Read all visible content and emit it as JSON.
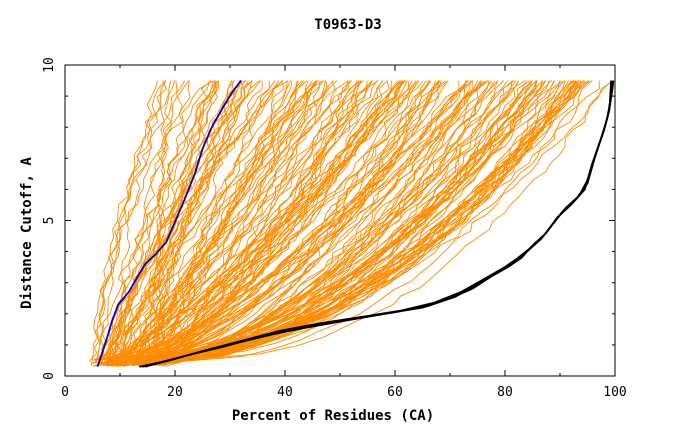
{
  "chart_data": {
    "type": "line",
    "title": "T0963-D3",
    "xlabel": "Percent of Residues (CA)",
    "ylabel": "Distance Cutoff, A",
    "xlim": [
      0,
      100
    ],
    "ylim": [
      0,
      10
    ],
    "x_ticks": [
      0,
      20,
      40,
      60,
      80,
      100
    ],
    "y_ticks": [
      0,
      5,
      10
    ],
    "grid": false,
    "background_series_color": "#ff8c00",
    "series": [
      {
        "color": "#0000cd",
        "points": [
          [
            5.9,
            0.3
          ],
          [
            6.7,
            0.7
          ],
          [
            7.6,
            1.2
          ],
          [
            8.6,
            1.8
          ],
          [
            9.7,
            2.3
          ],
          [
            11.6,
            2.7
          ],
          [
            13.2,
            3.2
          ],
          [
            14.6,
            3.6
          ],
          [
            16.4,
            3.9
          ],
          [
            18.4,
            4.3
          ],
          [
            20.1,
            5.0
          ],
          [
            21.8,
            5.7
          ],
          [
            23.6,
            6.5
          ],
          [
            25.0,
            7.3
          ],
          [
            26.7,
            8.0
          ],
          [
            28.6,
            8.6
          ],
          [
            30.3,
            9.1
          ],
          [
            32.0,
            9.5
          ]
        ]
      },
      {
        "color": "#000000",
        "points": [
          [
            13.5,
            0.3
          ],
          [
            17.5,
            0.45
          ],
          [
            23.0,
            0.7
          ],
          [
            29.0,
            0.95
          ],
          [
            35.0,
            1.25
          ],
          [
            42.0,
            1.5
          ],
          [
            50.0,
            1.75
          ],
          [
            58.0,
            2.0
          ],
          [
            65.0,
            2.2
          ],
          [
            70.0,
            2.5
          ],
          [
            74.0,
            2.8
          ],
          [
            77.5,
            3.2
          ],
          [
            80.5,
            3.5
          ],
          [
            83.0,
            3.8
          ],
          [
            85.0,
            4.2
          ],
          [
            87.5,
            4.6
          ],
          [
            89.5,
            5.1
          ],
          [
            92.0,
            5.5
          ],
          [
            94.5,
            6.0
          ],
          [
            95.8,
            6.8
          ],
          [
            97.2,
            7.5
          ],
          [
            98.3,
            8.1
          ],
          [
            99.0,
            8.6
          ],
          [
            99.3,
            9.5
          ]
        ]
      },
      {
        "color": "#000000",
        "points": [
          [
            14.0,
            0.3
          ],
          [
            19.0,
            0.5
          ],
          [
            25.0,
            0.8
          ],
          [
            31.0,
            1.05
          ],
          [
            38.0,
            1.35
          ],
          [
            45.0,
            1.6
          ],
          [
            53.0,
            1.85
          ],
          [
            60.0,
            2.05
          ],
          [
            66.0,
            2.25
          ],
          [
            71.0,
            2.55
          ],
          [
            75.0,
            2.95
          ],
          [
            78.5,
            3.35
          ],
          [
            81.5,
            3.65
          ],
          [
            84.0,
            4.0
          ],
          [
            86.5,
            4.4
          ],
          [
            88.5,
            4.85
          ],
          [
            90.5,
            5.3
          ],
          [
            93.0,
            5.7
          ],
          [
            95.0,
            6.2
          ],
          [
            96.3,
            7.0
          ],
          [
            97.6,
            7.7
          ],
          [
            98.6,
            8.3
          ],
          [
            99.3,
            9.0
          ],
          [
            99.6,
            9.5
          ]
        ]
      },
      {
        "color": "#000000",
        "points": [
          [
            14.5,
            0.3
          ],
          [
            20.0,
            0.55
          ],
          [
            26.0,
            0.85
          ],
          [
            32.5,
            1.15
          ],
          [
            39.0,
            1.45
          ],
          [
            46.5,
            1.7
          ],
          [
            54.0,
            1.9
          ],
          [
            61.0,
            2.1
          ],
          [
            67.0,
            2.35
          ],
          [
            72.0,
            2.7
          ],
          [
            76.0,
            3.1
          ],
          [
            79.5,
            3.45
          ],
          [
            82.0,
            3.75
          ],
          [
            84.5,
            4.1
          ],
          [
            87.0,
            4.5
          ],
          [
            89.0,
            4.95
          ],
          [
            91.0,
            5.4
          ],
          [
            93.5,
            5.8
          ],
          [
            95.3,
            6.4
          ],
          [
            96.6,
            7.2
          ],
          [
            98.0,
            7.9
          ],
          [
            98.9,
            8.5
          ],
          [
            99.5,
            9.2
          ],
          [
            99.7,
            9.5
          ]
        ]
      }
    ]
  }
}
